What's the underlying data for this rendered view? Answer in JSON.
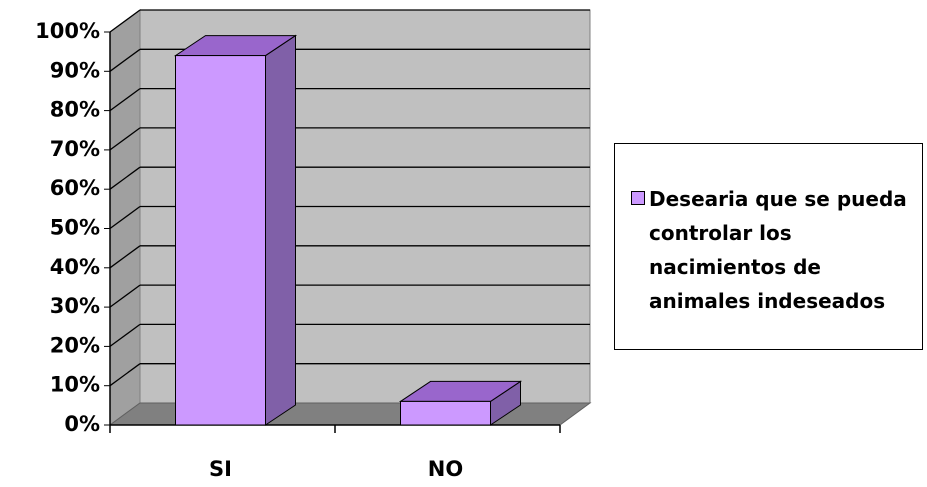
{
  "chart_data": {
    "type": "bar3d",
    "categories": [
      "SI",
      "NO"
    ],
    "series": [
      {
        "name": "Desearia que se pueda controlar los nacimientos de animales indeseados",
        "color": "#cc99ff",
        "values": [
          94,
          6
        ]
      }
    ],
    "ylim": [
      0,
      100
    ],
    "yticks": [
      {
        "value": 0,
        "label": "0%"
      },
      {
        "value": 10,
        "label": "10%"
      },
      {
        "value": 20,
        "label": "20%"
      },
      {
        "value": 30,
        "label": "30%"
      },
      {
        "value": 40,
        "label": "40%"
      },
      {
        "value": 50,
        "label": "50%"
      },
      {
        "value": 60,
        "label": "60%"
      },
      {
        "value": 70,
        "label": "70%"
      },
      {
        "value": 80,
        "label": "80%"
      },
      {
        "value": 90,
        "label": "90%"
      },
      {
        "value": 100,
        "label": "100%"
      }
    ],
    "grid": true,
    "legend": "right"
  }
}
